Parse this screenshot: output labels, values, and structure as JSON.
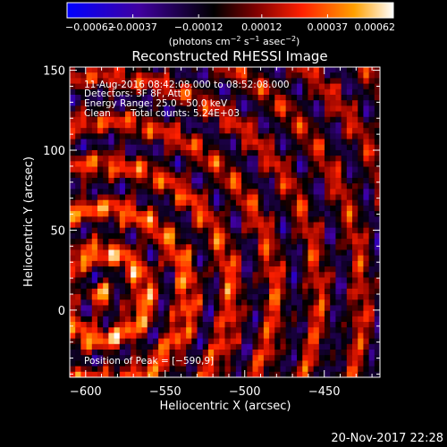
{
  "chart_data": {
    "type": "heatmap",
    "title": "Reconstructed RHESSI Image",
    "xlabel": "Heliocentric X (arcsec)",
    "ylabel": "Heliocentric Y (arcsec)",
    "xlim": [
      -610,
      -415
    ],
    "ylim": [
      -42,
      152
    ],
    "x_ticks": [
      {
        "value": -600,
        "label": "−600"
      },
      {
        "value": -550,
        "label": "−550"
      },
      {
        "value": -500,
        "label": "−500"
      },
      {
        "value": -450,
        "label": "−450"
      }
    ],
    "y_ticks": [
      {
        "value": 0,
        "label": "0"
      },
      {
        "value": 50,
        "label": "50"
      },
      {
        "value": 100,
        "label": "100"
      },
      {
        "value": 150,
        "label": "150"
      }
    ],
    "colorbar": {
      "min": -0.00062,
      "max": 0.00062,
      "ticks": [
        {
          "value": -0.00062,
          "label": "−0.00062"
        },
        {
          "value": -0.00037,
          "label": "−0.00037"
        },
        {
          "value": -0.00012,
          "label": "−0.00012"
        },
        {
          "value": 0.00012,
          "label": "0.00012"
        },
        {
          "value": 0.00037,
          "label": "0.00037"
        },
        {
          "value": 0.00062,
          "label": "0.00062"
        }
      ],
      "label_prefix": "(photons cm",
      "label_exp1": "−2",
      "label_mid1": " s",
      "label_exp2": "−1",
      "label_mid2": " asec",
      "label_exp3": "−2",
      "label_suffix": ")",
      "colors": [
        "#0000ff",
        "#4000a0",
        "#000000",
        "#800000",
        "#ff2000",
        "#ffa000",
        "#ffffff"
      ]
    },
    "peak_position": {
      "x": -590,
      "y": 9
    },
    "annotations": [
      "11-Aug-2016 08:42:08.000 to 08:52:08.000",
      "Detectors: 3F 8F, Att 0",
      "Energy Range: 25.0 - 50.0 keV",
      "Clean",
      "Total counts: 5.24E+03",
      "Position of Peak = [−590,9]"
    ],
    "grid": false
  },
  "footer": {
    "timestamp": "20-Nov-2017 22:28"
  }
}
